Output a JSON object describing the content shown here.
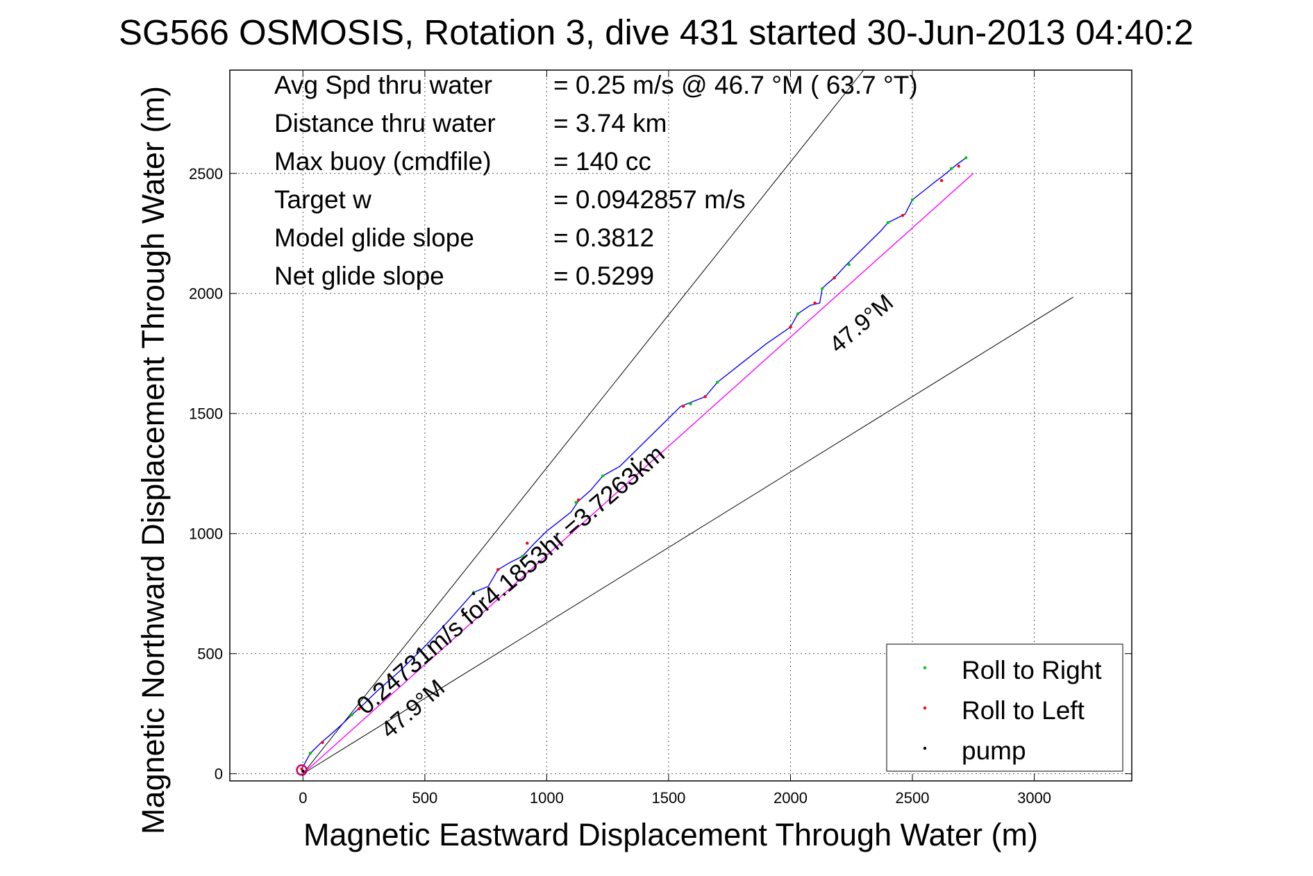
{
  "title": "SG566 OSMOSIS, Rotation 3, dive 431 started 30-Jun-2013 04:40:2",
  "chart_data": {
    "type": "line",
    "xlabel": "Magnetic Eastward Displacement Through Water (m)",
    "ylabel": "Magnetic Northward Displacement Through Water (m)",
    "xlim": [
      -300,
      3400
    ],
    "ylim": [
      -30,
      2930
    ],
    "x_ticks": [
      0,
      500,
      1000,
      1500,
      2000,
      2500,
      3000
    ],
    "y_ticks": [
      0,
      500,
      1000,
      1500,
      2000,
      2500
    ],
    "grid": true,
    "stats": [
      {
        "label": "Avg Spd thru water",
        "value": "=  0.25 m/s @  46.7 °M ( 63.7 °T)"
      },
      {
        "label": "Distance thru water",
        "value": "=  3.74 km"
      },
      {
        "label": "Max buoy (cmdfile)",
        "value": "= 140 cc"
      },
      {
        "label": "Target w",
        "value": "= 0.0942857 m/s"
      },
      {
        "label": "Model glide slope",
        "value": "= 0.3812"
      },
      {
        "label": "Net glide slope",
        "value": "= 0.5299"
      }
    ],
    "annotations": {
      "speed_label": "0.24731m/s for4.1853hr =3.7263km",
      "heading_upper": "47.9°M",
      "heading_lower": "47.9°M"
    },
    "lines": {
      "cone_upper": {
        "x": [
          0,
          2300
        ],
        "y": [
          0,
          2930
        ]
      },
      "cone_lower": {
        "x": [
          0,
          3160
        ],
        "y": [
          0,
          1985
        ]
      },
      "heading": {
        "x": [
          0,
          2750
        ],
        "y": [
          0,
          2500
        ]
      }
    },
    "track": {
      "name": "track",
      "color": "#0000ff",
      "x": [
        -5,
        30,
        75,
        110,
        160,
        200,
        250,
        300,
        400,
        500,
        600,
        700,
        760,
        800,
        850,
        900,
        950,
        1000,
        1050,
        1100,
        1130,
        1180,
        1230,
        1300,
        1350,
        1400,
        1450,
        1500,
        1550,
        1600,
        1650,
        1700,
        1800,
        1900,
        2000,
        2030,
        2080,
        2120,
        2130,
        2150,
        2180,
        2230,
        2280,
        2330,
        2370,
        2400,
        2450,
        2470,
        2500,
        2550,
        2600,
        2620,
        2650,
        2680,
        2700,
        2720
      ],
      "y": [
        20,
        85,
        130,
        160,
        205,
        245,
        290,
        340,
        430,
        530,
        640,
        755,
        780,
        850,
        880,
        905,
        960,
        1010,
        1050,
        1090,
        1135,
        1180,
        1240,
        1280,
        1330,
        1380,
        1430,
        1480,
        1530,
        1550,
        1570,
        1630,
        1710,
        1790,
        1860,
        1915,
        1950,
        1960,
        2020,
        2040,
        2065,
        2120,
        2170,
        2220,
        2260,
        2295,
        2320,
        2330,
        2390,
        2430,
        2470,
        2485,
        2510,
        2535,
        2550,
        2565
      ]
    },
    "series": [
      {
        "name": "Roll to Right",
        "color": "#00cc00",
        "x": [
          30,
          200,
          700,
          900,
          1120,
          1230,
          1590,
          1700,
          2030,
          2130,
          2240,
          2400,
          2500,
          2660,
          2720
        ],
        "y": [
          85,
          245,
          755,
          905,
          1130,
          1240,
          1540,
          1630,
          1915,
          2020,
          2120,
          2295,
          2390,
          2520,
          2565
        ]
      },
      {
        "name": "Roll to Left",
        "color": "#ff0000",
        "x": [
          -5,
          80,
          230,
          800,
          920,
          1130,
          1560,
          1650,
          2000,
          2100,
          2180,
          2460,
          2620,
          2690
        ],
        "y": [
          20,
          130,
          270,
          850,
          960,
          1140,
          1530,
          1570,
          1860,
          1960,
          2065,
          2325,
          2470,
          2530
        ]
      },
      {
        "name": "pump",
        "color": "#000000",
        "x": [
          0,
          700,
          1350
        ],
        "y": [
          10,
          750,
          1310
        ]
      }
    ],
    "legend_position": "bottom-right"
  }
}
